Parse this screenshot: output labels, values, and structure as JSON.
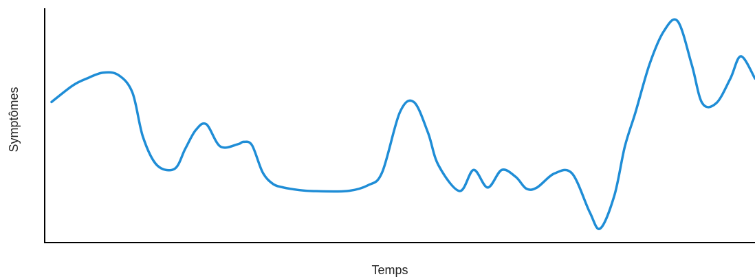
{
  "chart_data": {
    "type": "line",
    "title": "",
    "xlabel": "Temps",
    "ylabel": "Symptômes",
    "xlim": [
      0,
      100
    ],
    "ylim": [
      0,
      100
    ],
    "grid": false,
    "legend": "none",
    "ticks": false,
    "series": [
      {
        "color": "#1f8dd6",
        "x": [
          0,
          3,
          5,
          7.3,
          9.5,
          11.5,
          13,
          15,
          17.5,
          19,
          20.5,
          22,
          24,
          26.5,
          27.3,
          28.5,
          30,
          31.5,
          33,
          35,
          37,
          42,
          45,
          47,
          49.5,
          51.5,
          53.5,
          55,
          58,
          60,
          62,
          64,
          66,
          67.5,
          69,
          71.5,
          74,
          76.5,
          78,
          80,
          81.5,
          83,
          85,
          87,
          89,
          91,
          92.5,
          94.5,
          96.5,
          98,
          100
        ],
        "y": [
          60,
          67,
          70,
          72.5,
          71.5,
          64,
          45,
          33,
          31.5,
          40,
          48,
          50.5,
          41,
          42,
          43,
          41.5,
          30,
          25,
          23.5,
          22.5,
          22,
          22,
          24.5,
          30,
          55.5,
          60,
          47,
          33,
          22,
          31,
          23.5,
          31,
          28,
          23,
          23.5,
          29.5,
          29.5,
          13,
          6,
          20,
          41,
          55.5,
          76,
          90,
          94.5,
          76,
          59.5,
          59.5,
          70,
          79.5,
          70
        ]
      }
    ]
  }
}
